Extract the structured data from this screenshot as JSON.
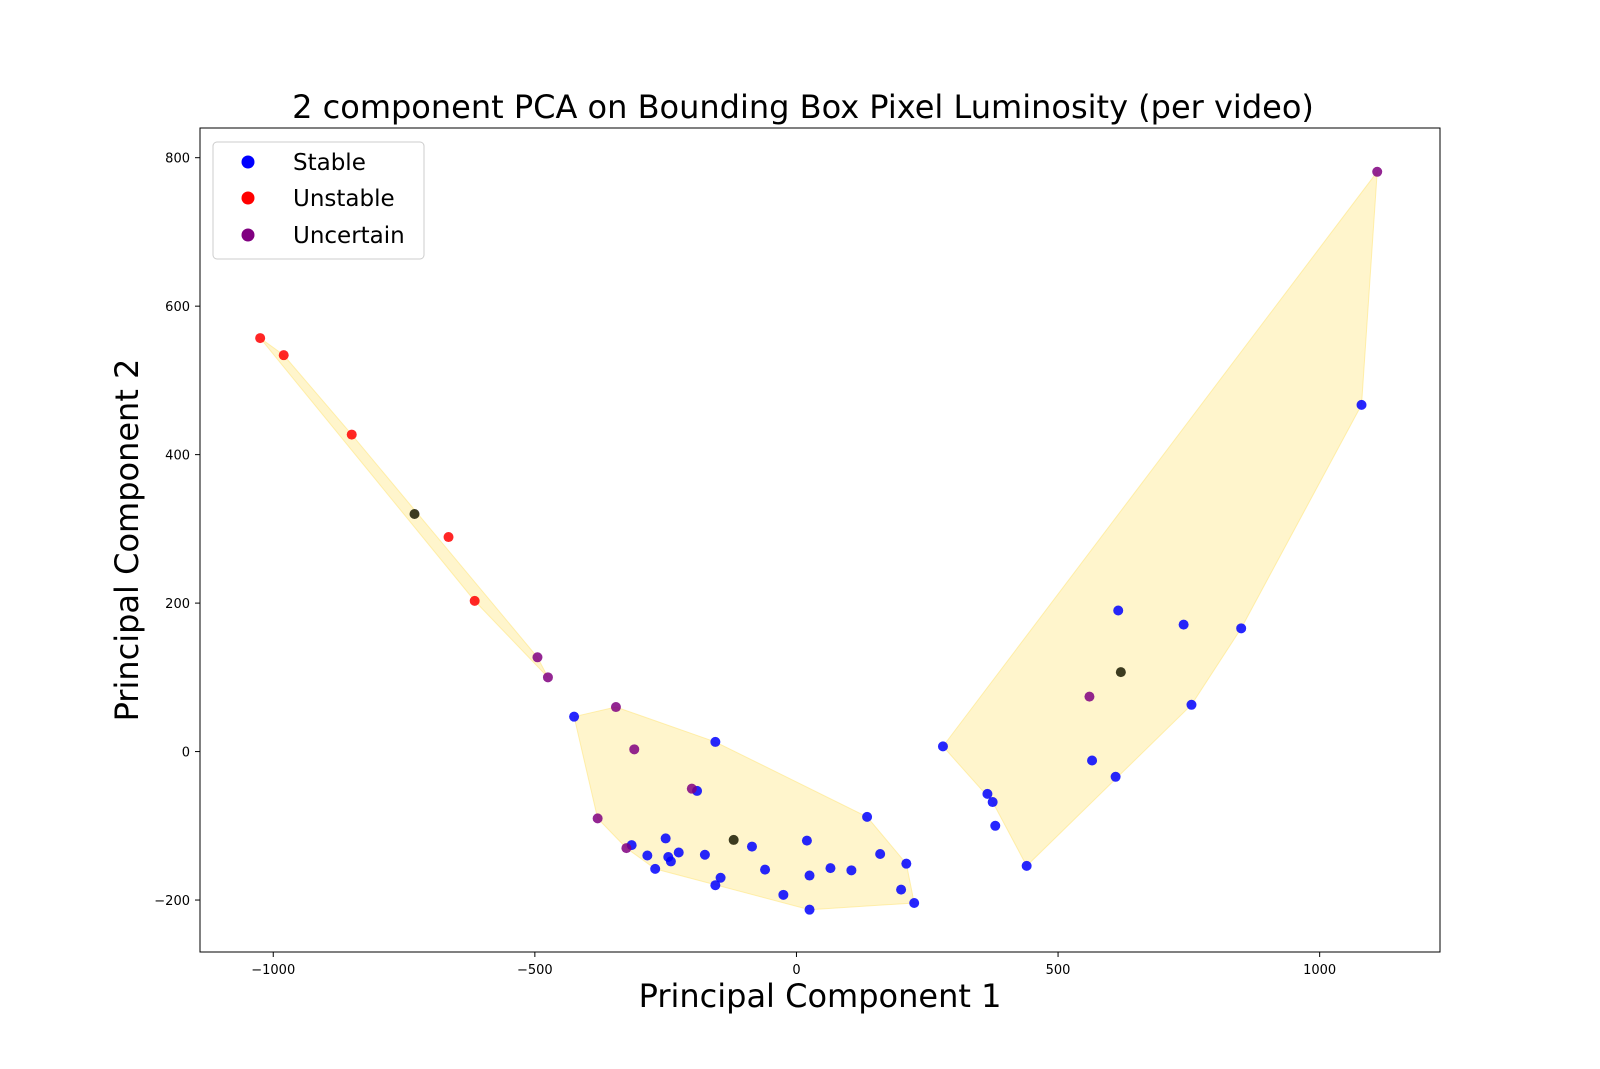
{
  "chart_data": {
    "type": "scatter",
    "title": "2 component PCA on Bounding Box Pixel Luminosity (per video)",
    "xlabel": "Principal Component 1",
    "ylabel": "Principal Component 2",
    "xlim": [
      -1140,
      1230
    ],
    "ylim": [
      -270,
      840
    ],
    "xticks": [
      -1000,
      -500,
      0,
      500,
      1000
    ],
    "yticks": [
      -200,
      0,
      200,
      400,
      600,
      800
    ],
    "grid": false,
    "legend_position": "top-left",
    "series": [
      {
        "name": "Stable",
        "color": "#0000ff",
        "points": [
          [
            -425,
            47
          ],
          [
            -155,
            13
          ],
          [
            -190,
            -53
          ],
          [
            -285,
            -140
          ],
          [
            -270,
            -158
          ],
          [
            -315,
            -126
          ],
          [
            -250,
            -117
          ],
          [
            -245,
            -142
          ],
          [
            -240,
            -148
          ],
          [
            -225,
            -136
          ],
          [
            -175,
            -139
          ],
          [
            -155,
            -180
          ],
          [
            -145,
            -170
          ],
          [
            -85,
            -128
          ],
          [
            -60,
            -159
          ],
          [
            -25,
            -193
          ],
          [
            20,
            -120
          ],
          [
            25,
            -167
          ],
          [
            25,
            -213
          ],
          [
            65,
            -157
          ],
          [
            105,
            -160
          ],
          [
            135,
            -88
          ],
          [
            160,
            -138
          ],
          [
            200,
            -186
          ],
          [
            210,
            -151
          ],
          [
            225,
            -204
          ],
          [
            280,
            7
          ],
          [
            365,
            -57
          ],
          [
            375,
            -68
          ],
          [
            380,
            -100
          ],
          [
            440,
            -154
          ],
          [
            565,
            -12
          ],
          [
            610,
            -34
          ],
          [
            615,
            190
          ],
          [
            740,
            171
          ],
          [
            755,
            63
          ],
          [
            850,
            166
          ],
          [
            1080,
            467
          ]
        ]
      },
      {
        "name": "Unstable",
        "color": "#ff0000",
        "points": [
          [
            -1025,
            557
          ],
          [
            -980,
            534
          ],
          [
            -850,
            427
          ],
          [
            -665,
            289
          ],
          [
            -615,
            203
          ]
        ]
      },
      {
        "name": "Uncertain",
        "color": "#800080",
        "points": [
          [
            -495,
            127
          ],
          [
            -475,
            100
          ],
          [
            -345,
            60
          ],
          [
            -310,
            3
          ],
          [
            -200,
            -50
          ],
          [
            -380,
            -90
          ],
          [
            -325,
            -130
          ],
          [
            560,
            74
          ],
          [
            1110,
            781
          ]
        ]
      },
      {
        "name": "",
        "color": "#1a1a00",
        "points": [
          [
            -730,
            320
          ],
          [
            -120,
            -119
          ],
          [
            620,
            107
          ]
        ]
      }
    ],
    "hulls": [
      {
        "color": "#ffe680",
        "points": [
          [
            -1025,
            557
          ],
          [
            -615,
            203
          ],
          [
            -475,
            100
          ],
          [
            -495,
            127
          ],
          [
            -850,
            427
          ],
          [
            -980,
            534
          ]
        ]
      },
      {
        "color": "#ffe680",
        "points": [
          [
            -425,
            47
          ],
          [
            -345,
            60
          ],
          [
            -155,
            13
          ],
          [
            135,
            -88
          ],
          [
            210,
            -151
          ],
          [
            225,
            -204
          ],
          [
            25,
            -213
          ],
          [
            -270,
            -158
          ],
          [
            -325,
            -130
          ],
          [
            -380,
            -90
          ]
        ]
      },
      {
        "color": "#ffe680",
        "points": [
          [
            280,
            7
          ],
          [
            1110,
            781
          ],
          [
            1080,
            467
          ],
          [
            850,
            166
          ],
          [
            755,
            63
          ],
          [
            440,
            -154
          ],
          [
            375,
            -68
          ]
        ]
      }
    ]
  }
}
